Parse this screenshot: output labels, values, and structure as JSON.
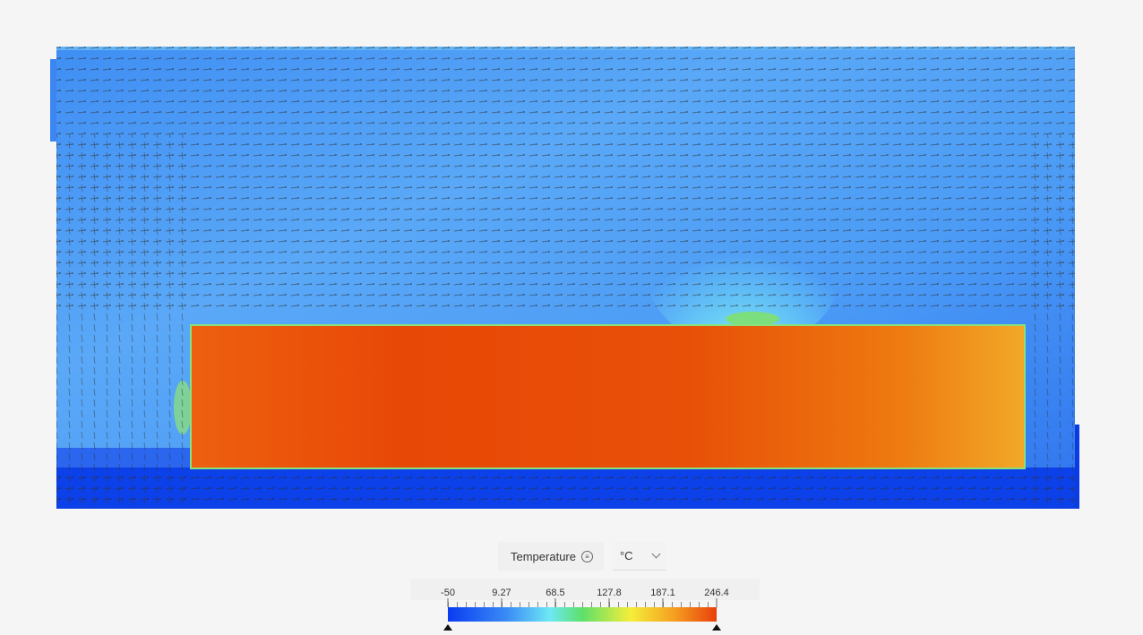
{
  "legend": {
    "title": "Temperature",
    "unit": "°C",
    "range": [
      -50,
      246.4
    ],
    "ticks": [
      -50,
      9.27,
      68.5,
      127.8,
      187.1,
      246.4
    ]
  }
}
